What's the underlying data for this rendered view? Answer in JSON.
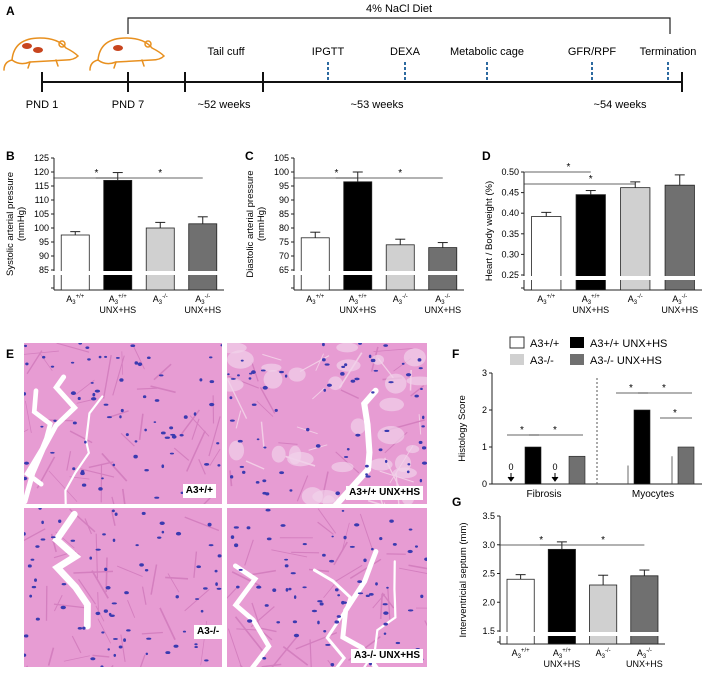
{
  "panels": {
    "A": "A",
    "B": "B",
    "C": "C",
    "D": "D",
    "E": "E",
    "F": "F",
    "G": "G"
  },
  "timeline": {
    "diet_label": "4% NaCl Diet",
    "points": [
      "PND 1",
      "PND 7"
    ],
    "procedures": [
      "Tail cuff",
      "IPGTT",
      "DEXA",
      "Metabolic cage",
      "GFR/RPF",
      "Termination"
    ],
    "ages": [
      "~52 weeks",
      "~53 weeks",
      "~54 weeks"
    ],
    "rat_color": "#e8901f",
    "kidney_color": "#c8451e"
  },
  "groups": {
    "base": "A",
    "sub": "3",
    "wt": "+/+",
    "ko": "-/-",
    "treat": "UNX+HS"
  },
  "colors": {
    "wt": "#ffffff",
    "wt_unx": "#000000",
    "ko": "#d0d0d0",
    "ko_unx": "#707070"
  },
  "histology": {
    "labels": [
      "A3+/+",
      "A3+/+ UNX+HS",
      "A3-/-",
      "A3-/- UNX+HS"
    ],
    "stain_bg": "#e79cd3",
    "nucleus_color": "#3a3ab0"
  },
  "chart_data": [
    {
      "panel": "B",
      "type": "bar",
      "ylabel": "Systolic arterial pressure (mmHg)",
      "ylim": [
        85,
        125
      ],
      "yticks": [
        85,
        90,
        95,
        100,
        105,
        110,
        115,
        120,
        125
      ],
      "axis_break": true,
      "categories": [
        "A3+/+",
        "A3+/+ UNX+HS",
        "A3-/-",
        "A3-/- UNX+HS"
      ],
      "values": [
        97.5,
        117,
        100,
        101.5
      ],
      "errors": [
        1.2,
        2.8,
        2,
        2.5
      ],
      "significance": [
        {
          "from": 0,
          "to": 1,
          "label": "*"
        },
        {
          "from": 1,
          "to": 3,
          "label": "*"
        }
      ]
    },
    {
      "panel": "C",
      "type": "bar",
      "ylabel": "Diastolic arterial pressure (mmHg)",
      "ylim": [
        65,
        105
      ],
      "yticks": [
        65,
        70,
        75,
        80,
        85,
        90,
        95,
        100,
        105
      ],
      "axis_break": true,
      "categories": [
        "A3+/+",
        "A3+/+ UNX+HS",
        "A3-/-",
        "A3-/- UNX+HS"
      ],
      "values": [
        76.5,
        96.5,
        74,
        73
      ],
      "errors": [
        2,
        3.5,
        2,
        1.8
      ],
      "significance": [
        {
          "from": 0,
          "to": 1,
          "label": "*"
        },
        {
          "from": 1,
          "to": 3,
          "label": "*"
        }
      ]
    },
    {
      "panel": "D",
      "type": "bar",
      "ylabel": "Heart / Body weight (%)",
      "ylim": [
        0.25,
        0.5
      ],
      "yticks": [
        0.25,
        0.3,
        0.35,
        0.4,
        0.45,
        0.5
      ],
      "axis_break": true,
      "categories": [
        "A3+/+",
        "A3+/+ UNX+HS",
        "A3-/-",
        "A3-/- UNX+HS"
      ],
      "values": [
        0.392,
        0.445,
        0.462,
        0.468
      ],
      "errors": [
        0.01,
        0.01,
        0.014,
        0.025
      ],
      "significance": [
        {
          "from": 0,
          "to": 1,
          "label": "*"
        },
        {
          "from": 0,
          "to": 2,
          "label": "*"
        }
      ]
    },
    {
      "panel": "F",
      "type": "bar",
      "ylabel": "Histology Score",
      "ylim": [
        0,
        3
      ],
      "yticks": [
        0,
        1,
        2,
        3
      ],
      "legend": [
        "A3+/+",
        "A3+/+ UNX+HS",
        "A3-/-",
        "A3-/- UNX+HS"
      ],
      "categories": [
        "Fibrosis",
        "Myocytes"
      ],
      "series": [
        {
          "name": "A3+/+",
          "values": [
            0,
            0.5
          ]
        },
        {
          "name": "A3+/+ UNX+HS",
          "values": [
            1,
            2
          ]
        },
        {
          "name": "A3-/-",
          "values": [
            0,
            0.75
          ]
        },
        {
          "name": "A3-/- UNX+HS",
          "values": [
            0.75,
            1
          ]
        }
      ],
      "zero_label": "0",
      "significance": [
        {
          "group": 0,
          "from": 0,
          "to": 1,
          "label": "*"
        },
        {
          "group": 0,
          "from": 1,
          "to": 3,
          "label": "*"
        },
        {
          "group": 1,
          "from": 0,
          "to": 1,
          "label": "*"
        },
        {
          "group": 1,
          "from": 1,
          "to": 3,
          "label": "*"
        },
        {
          "group": 1,
          "from": 2,
          "to": 3,
          "label": "*"
        }
      ]
    },
    {
      "panel": "G",
      "type": "bar",
      "ylabel": "Interventricial septum (mm)",
      "ylim": [
        1.5,
        3.5
      ],
      "yticks": [
        1.5,
        2.0,
        2.5,
        3.0,
        3.5
      ],
      "axis_break": true,
      "categories": [
        "A3+/+",
        "A3+/+ UNX+HS",
        "A3-/-",
        "A3-/- UNX+HS"
      ],
      "values": [
        2.4,
        2.92,
        2.3,
        2.46
      ],
      "errors": [
        0.08,
        0.13,
        0.17,
        0.1
      ],
      "significance": [
        {
          "from": 0,
          "to": 1,
          "label": "*"
        },
        {
          "from": 1,
          "to": 3,
          "label": "*"
        }
      ]
    }
  ]
}
